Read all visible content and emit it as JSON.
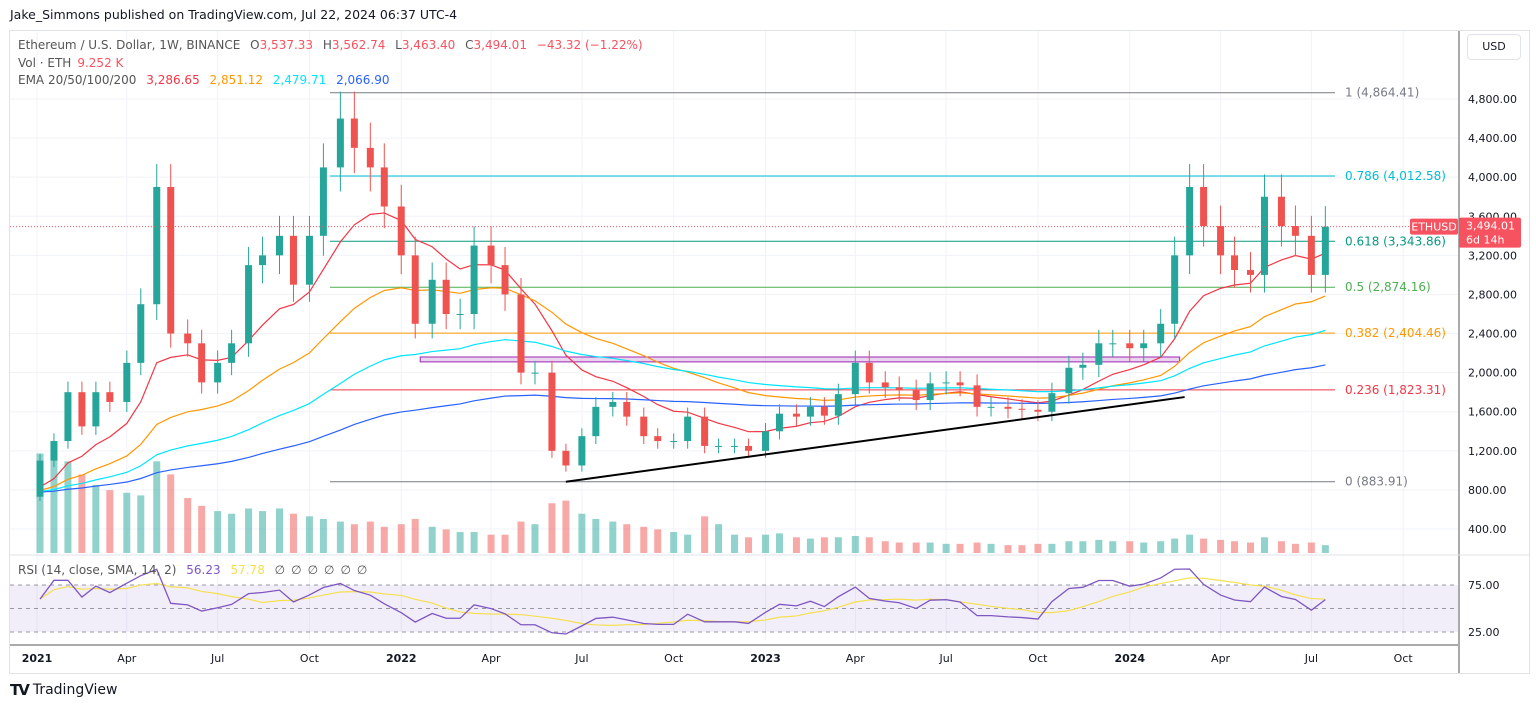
{
  "published": "Jake_Simmons published on TradingView.com, Jul 22, 2024 06:37 UTC-4",
  "legend": {
    "symbol": "Ethereum / U.S. Dollar, 1W, BINANCE",
    "o_label": "O",
    "o": "3,537.33",
    "h_label": "H",
    "h": "3,562.74",
    "l_label": "L",
    "l": "3,463.40",
    "c_label": "C",
    "c": "3,494.01",
    "change": "−43.32 (−1.22%)",
    "vol_label": "Vol · ETH",
    "vol": "9.252 K",
    "ema_label": "EMA 20/50/100/200",
    "ema": [
      "3,286.65",
      "2,851.12",
      "2,479.71",
      "2,066.90"
    ],
    "ema_colors": [
      "#f23645",
      "#ff9800",
      "#00e5ff",
      "#2962ff"
    ],
    "rsi_label": "RSI (14, close, SMA, 14, 2)",
    "rsi": "56.23",
    "rsi_ma": "57.78",
    "rsi_na": [
      "∅",
      "∅",
      "∅",
      "∅",
      "∅",
      "∅"
    ]
  },
  "currency": "USD",
  "price_tag": {
    "symbol": "ETHUSD",
    "price": "3,494.01",
    "countdown": "6d 14h",
    "color": "#f7525f"
  },
  "logo_text": "TradingView",
  "chart_data": {
    "type": "candlestick",
    "title": "Ethereum / U.S. Dollar, 1W, BINANCE",
    "ylim": [
      0,
      5000
    ],
    "y_ticks": [
      "400.00",
      "800.00",
      "1,200.00",
      "1,600.00",
      "2,000.00",
      "2,400.00",
      "2,800.00",
      "3,200.00",
      "3,600.00",
      "4,000.00",
      "4,400.00",
      "4,800.00"
    ],
    "y_tick_values": [
      400,
      800,
      1200,
      1600,
      2000,
      2400,
      2800,
      3200,
      3600,
      4000,
      4400,
      4800
    ],
    "x_ticks": [
      {
        "label": "2021",
        "date": "2021-01-01"
      },
      {
        "label": "Apr",
        "date": "2021-04-01"
      },
      {
        "label": "Jul",
        "date": "2021-07-01"
      },
      {
        "label": "Oct",
        "date": "2021-10-01"
      },
      {
        "label": "2022",
        "date": "2022-01-01"
      },
      {
        "label": "Apr",
        "date": "2022-04-01"
      },
      {
        "label": "Jul",
        "date": "2022-07-01"
      },
      {
        "label": "Oct",
        "date": "2022-10-01"
      },
      {
        "label": "2023",
        "date": "2023-01-01"
      },
      {
        "label": "Apr",
        "date": "2023-04-01"
      },
      {
        "label": "Jul",
        "date": "2023-07-01"
      },
      {
        "label": "Oct",
        "date": "2023-10-01"
      },
      {
        "label": "2024",
        "date": "2024-01-01"
      },
      {
        "label": "Apr",
        "date": "2024-04-01"
      },
      {
        "label": "Jul",
        "date": "2024-07-01"
      },
      {
        "label": "Oct",
        "date": "2024-10-01"
      }
    ],
    "open_first": 730,
    "dates": [
      "2021-01-04",
      "2021-01-18",
      "2021-02-01",
      "2021-02-15",
      "2021-03-01",
      "2021-03-15",
      "2021-04-01",
      "2021-04-15",
      "2021-05-01",
      "2021-05-15",
      "2021-06-01",
      "2021-06-15",
      "2021-07-01",
      "2021-07-15",
      "2021-08-01",
      "2021-08-15",
      "2021-09-01",
      "2021-09-15",
      "2021-10-01",
      "2021-10-15",
      "2021-11-01",
      "2021-11-15",
      "2021-12-01",
      "2021-12-15",
      "2022-01-01",
      "2022-01-15",
      "2022-02-01",
      "2022-02-15",
      "2022-03-01",
      "2022-03-15",
      "2022-04-01",
      "2022-04-15",
      "2022-05-01",
      "2022-05-15",
      "2022-06-01",
      "2022-06-15",
      "2022-07-01",
      "2022-07-15",
      "2022-08-01",
      "2022-08-15",
      "2022-09-01",
      "2022-09-15",
      "2022-10-01",
      "2022-10-15",
      "2022-11-01",
      "2022-11-15",
      "2022-12-01",
      "2022-12-15",
      "2023-01-01",
      "2023-01-15",
      "2023-02-01",
      "2023-02-15",
      "2023-03-01",
      "2023-03-15",
      "2023-04-01",
      "2023-04-15",
      "2023-05-01",
      "2023-05-15",
      "2023-06-01",
      "2023-06-15",
      "2023-07-01",
      "2023-07-15",
      "2023-08-01",
      "2023-08-15",
      "2023-09-01",
      "2023-09-15",
      "2023-10-01",
      "2023-10-15",
      "2023-11-01",
      "2023-11-15",
      "2023-12-01",
      "2023-12-15",
      "2024-01-01",
      "2024-01-15",
      "2024-02-01",
      "2024-02-15",
      "2024-03-01",
      "2024-03-15",
      "2024-04-01",
      "2024-04-15",
      "2024-05-01",
      "2024-05-15",
      "2024-06-01",
      "2024-06-15",
      "2024-07-01",
      "2024-07-15"
    ],
    "close": [
      1100,
      1300,
      1800,
      1450,
      1800,
      1700,
      2100,
      2700,
      3900,
      2400,
      2300,
      1900,
      2100,
      2300,
      3100,
      3200,
      3400,
      2900,
      3400,
      4100,
      4600,
      4300,
      4100,
      3700,
      3200,
      2500,
      2950,
      2600,
      2600,
      3300,
      3100,
      2800,
      2000,
      2000,
      1200,
      1050,
      1350,
      1650,
      1700,
      1550,
      1350,
      1300,
      1300,
      1550,
      1250,
      1250,
      1250,
      1200,
      1400,
      1580,
      1550,
      1650,
      1560,
      1780,
      2100,
      1900,
      1850,
      1820,
      1720,
      1890,
      1900,
      1870,
      1650,
      1650,
      1630,
      1620,
      1600,
      1790,
      2050,
      2080,
      2300,
      2300,
      2250,
      2300,
      2500,
      3200,
      3900,
      3500,
      3200,
      3050,
      3000,
      3800,
      3500,
      3400,
      3000,
      3494.01
    ],
    "volume": [
      380,
      420,
      350,
      300,
      260,
      240,
      230,
      220,
      350,
      300,
      210,
      180,
      160,
      150,
      170,
      160,
      170,
      150,
      140,
      130,
      120,
      110,
      120,
      100,
      110,
      130,
      100,
      90,
      80,
      80,
      70,
      70,
      120,
      110,
      190,
      200,
      150,
      130,
      120,
      110,
      100,
      90,
      80,
      70,
      140,
      110,
      70,
      60,
      70,
      75,
      60,
      55,
      60,
      60,
      65,
      60,
      45,
      40,
      40,
      40,
      35,
      35,
      40,
      35,
      30,
      30,
      35,
      35,
      45,
      45,
      50,
      45,
      45,
      40,
      45,
      55,
      70,
      55,
      50,
      45,
      40,
      60,
      45,
      35,
      40,
      30
    ],
    "fib_levels": [
      {
        "ratio": "1",
        "price": 4864.41,
        "label": "1 (4,864.41)",
        "color": "#787b86"
      },
      {
        "ratio": "0.786",
        "price": 4012.58,
        "label": "0.786 (4,012.58)",
        "color": "#00bcd4"
      },
      {
        "ratio": "0.618",
        "price": 3343.86,
        "label": "0.618 (3,343.86)",
        "color": "#089981"
      },
      {
        "ratio": "0.5",
        "price": 2874.16,
        "label": "0.5 (2,874.16)",
        "color": "#4caf50"
      },
      {
        "ratio": "0.382",
        "price": 2404.46,
        "label": "0.382 (2,404.46)",
        "color": "#ff9800"
      },
      {
        "ratio": "0.236",
        "price": 1823.31,
        "label": "0.236 (1,823.31)",
        "color": "#f23645"
      },
      {
        "ratio": "0",
        "price": 883.91,
        "label": "0 (883.91)",
        "color": "#787b86"
      }
    ],
    "support_zone": {
      "from": "2022-01-20",
      "to": "2024-02-20",
      "low": 2110,
      "high": 2160,
      "color": "#9c27b0"
    },
    "trendline": {
      "from": {
        "date": "2022-06-15",
        "price": 883.91
      },
      "to": {
        "date": "2024-02-25",
        "price": 1750
      },
      "color": "#000000"
    },
    "ema_periods": [
      20,
      50,
      100,
      200
    ],
    "rsi_ticks": [
      "75.00",
      "25.00"
    ],
    "rsi_tick_values": [
      75,
      25
    ],
    "colors": {
      "up": "#26a69a",
      "down": "#ef5350"
    }
  }
}
